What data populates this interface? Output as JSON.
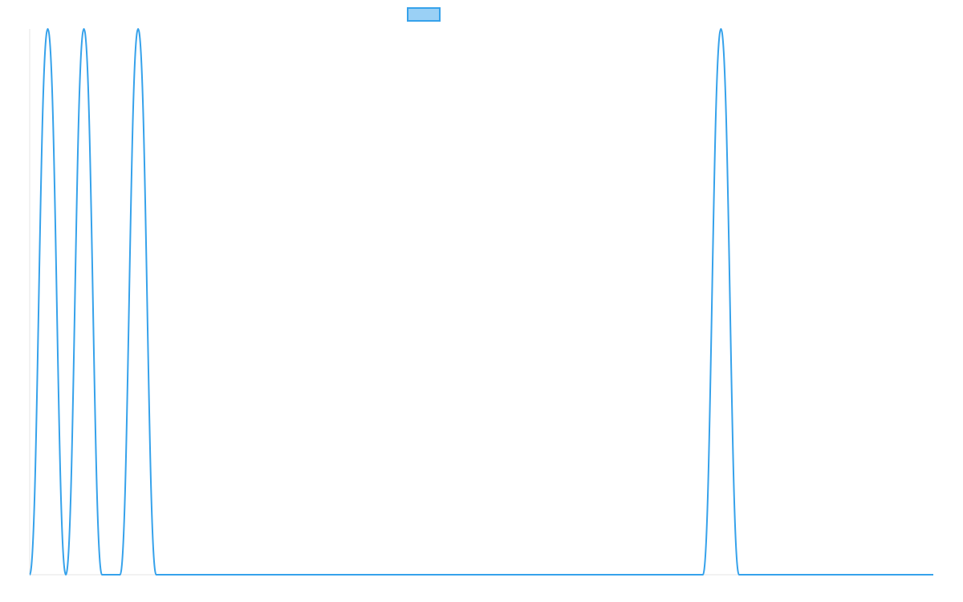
{
  "chart_data": {
    "type": "line",
    "title": "",
    "xlabel": "",
    "ylabel": "",
    "legend": {
      "placement": "top-center",
      "entries": [
        {
          "label": ""
        }
      ]
    },
    "grid": false,
    "x_range": [
      0,
      1000
    ],
    "y_range": [
      0,
      1
    ],
    "series": [
      {
        "color": "#36a2eb",
        "fill": "#9ad0f5",
        "x": [
          0,
          20,
          40,
          60,
          80,
          100,
          120,
          140,
          160,
          180,
          745,
          765,
          785,
          1000
        ],
        "y": [
          0,
          1,
          0,
          1,
          0,
          0,
          1,
          0,
          0,
          0,
          0,
          1,
          0,
          0
        ]
      }
    ]
  }
}
